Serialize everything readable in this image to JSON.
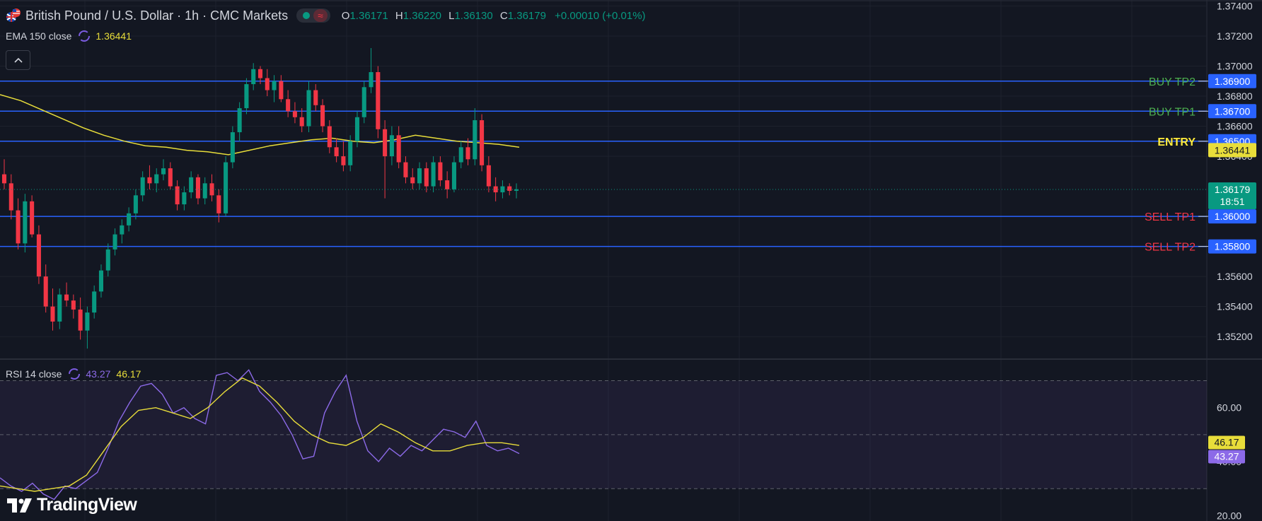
{
  "header": {
    "symbol_title": "British Pound / U.S. Dollar · 1h · CMC Markets",
    "ohlc": [
      {
        "key": "O",
        "value": "1.36171"
      },
      {
        "key": "H",
        "value": "1.36220"
      },
      {
        "key": "L",
        "value": "1.36130"
      },
      {
        "key": "C",
        "value": "1.36179"
      }
    ],
    "change": "+0.00010 (+0.01%)",
    "market_status_icon": "market-open-dot",
    "data_icon": "wave-icon"
  },
  "ema_indicator": {
    "label": "EMA 150 close",
    "value": "1.36441"
  },
  "rsi_indicator": {
    "label": "RSI 14 close",
    "value_rsi": "43.27",
    "value_ma": "46.17"
  },
  "brand": {
    "name": "TradingView",
    "logo_icon": "tradingview-logo-icon"
  },
  "colors": {
    "background": "#131722",
    "up": "#089981",
    "down": "#f23645",
    "level_line": "#2962ff",
    "ema": "#e8dd3a",
    "rsi": "#8c6ae8",
    "rsi_ma": "#e8dd3a",
    "buy_label": "#4caf50",
    "sell_label": "#f23645",
    "entry_label": "#ffeb3b"
  },
  "chart_data": [
    {
      "type": "candlestick",
      "title": "British Pound / U.S. Dollar · 1h · CMC Markets",
      "ylim": [
        1.3505,
        1.3744
      ],
      "y_ticks": [
        "1.37400",
        "1.37200",
        "1.37000",
        "1.36800",
        "1.36600",
        "1.36400",
        "1.35600",
        "1.35400",
        "1.35200"
      ],
      "current_price": {
        "value": 1.36179,
        "label": "1.36179",
        "countdown": "18:51"
      },
      "ema": {
        "name": "EMA 150 close",
        "value": 1.36441,
        "label": "1.36441",
        "values": [
          1.3681,
          1.3677,
          1.3671,
          1.3665,
          1.3659,
          1.3654,
          1.365,
          1.3647,
          1.3646,
          1.3644,
          1.3643,
          1.3641,
          1.3644,
          1.3647,
          1.3649,
          1.3651,
          1.3652,
          1.365,
          1.3649,
          1.3651,
          1.3654,
          1.3652,
          1.365,
          1.3649,
          1.3648,
          1.3646
        ]
      },
      "levels": [
        {
          "name": "BUY TP2",
          "value": 1.369,
          "label": "1.36900",
          "side": "buy"
        },
        {
          "name": "BUY TP1",
          "value": 1.367,
          "label": "1.36700",
          "side": "buy"
        },
        {
          "name": "ENTRY",
          "value": 1.365,
          "label": "1.36500",
          "side": "entry"
        },
        {
          "name": "SELL TP1",
          "value": 1.36,
          "label": "1.36000",
          "side": "sell"
        },
        {
          "name": "SELL TP2",
          "value": 1.358,
          "label": "1.35800",
          "side": "sell"
        }
      ],
      "candles": [
        [
          1.3628,
          1.3638,
          1.3618,
          1.3622
        ],
        [
          1.3622,
          1.3628,
          1.3598,
          1.3604
        ],
        [
          1.3604,
          1.3612,
          1.3578,
          1.3582
        ],
        [
          1.3582,
          1.3615,
          1.3576,
          1.361
        ],
        [
          1.361,
          1.3614,
          1.3586,
          1.3588
        ],
        [
          1.3588,
          1.3594,
          1.3555,
          1.356
        ],
        [
          1.356,
          1.3568,
          1.3536,
          1.354
        ],
        [
          1.354,
          1.3552,
          1.3524,
          1.353
        ],
        [
          1.353,
          1.3552,
          1.3525,
          1.3548
        ],
        [
          1.3548,
          1.3556,
          1.354,
          1.3544
        ],
        [
          1.3544,
          1.3548,
          1.3532,
          1.3538
        ],
        [
          1.3538,
          1.3546,
          1.3518,
          1.3524
        ],
        [
          1.3524,
          1.354,
          1.3512,
          1.3536
        ],
        [
          1.3536,
          1.3554,
          1.3532,
          1.355
        ],
        [
          1.355,
          1.3568,
          1.3546,
          1.3564
        ],
        [
          1.3564,
          1.3582,
          1.356,
          1.3578
        ],
        [
          1.3578,
          1.3592,
          1.3574,
          1.3588
        ],
        [
          1.3588,
          1.3598,
          1.3582,
          1.3594
        ],
        [
          1.3594,
          1.3606,
          1.359,
          1.3602
        ],
        [
          1.3602,
          1.3618,
          1.3598,
          1.3614
        ],
        [
          1.3614,
          1.363,
          1.361,
          1.3626
        ],
        [
          1.3626,
          1.3634,
          1.3618,
          1.3622
        ],
        [
          1.3622,
          1.3632,
          1.3616,
          1.3628
        ],
        [
          1.3628,
          1.3638,
          1.3624,
          1.3632
        ],
        [
          1.3632,
          1.3636,
          1.3618,
          1.362
        ],
        [
          1.362,
          1.3624,
          1.3604,
          1.3608
        ],
        [
          1.3608,
          1.362,
          1.3604,
          1.3616
        ],
        [
          1.3616,
          1.363,
          1.3612,
          1.3626
        ],
        [
          1.3626,
          1.3628,
          1.3608,
          1.3612
        ],
        [
          1.3612,
          1.3626,
          1.3608,
          1.3622
        ],
        [
          1.3622,
          1.3628,
          1.361,
          1.3614
        ],
        [
          1.3614,
          1.3618,
          1.3596,
          1.3602
        ],
        [
          1.3602,
          1.364,
          1.36,
          1.3636
        ],
        [
          1.3636,
          1.366,
          1.3632,
          1.3656
        ],
        [
          1.3656,
          1.3676,
          1.365,
          1.3672
        ],
        [
          1.3672,
          1.3692,
          1.3668,
          1.3688
        ],
        [
          1.3688,
          1.3702,
          1.3684,
          1.3698
        ],
        [
          1.3698,
          1.37,
          1.3688,
          1.3692
        ],
        [
          1.3692,
          1.3698,
          1.368,
          1.3684
        ],
        [
          1.3684,
          1.3694,
          1.3676,
          1.369
        ],
        [
          1.369,
          1.3694,
          1.3676,
          1.3678
        ],
        [
          1.3678,
          1.3684,
          1.3666,
          1.367
        ],
        [
          1.367,
          1.3676,
          1.3662,
          1.3666
        ],
        [
          1.3666,
          1.3672,
          1.3656,
          1.366
        ],
        [
          1.366,
          1.369,
          1.3656,
          1.3684
        ],
        [
          1.3684,
          1.3688,
          1.367,
          1.3674
        ],
        [
          1.3674,
          1.3678,
          1.3656,
          1.366
        ],
        [
          1.366,
          1.3664,
          1.3642,
          1.3646
        ],
        [
          1.3646,
          1.3652,
          1.3636,
          1.364
        ],
        [
          1.364,
          1.365,
          1.363,
          1.3634
        ],
        [
          1.3634,
          1.3654,
          1.363,
          1.365
        ],
        [
          1.365,
          1.367,
          1.3646,
          1.3666
        ],
        [
          1.3666,
          1.369,
          1.3662,
          1.3686
        ],
        [
          1.3686,
          1.3712,
          1.3682,
          1.3696
        ],
        [
          1.3696,
          1.37,
          1.3652,
          1.3658
        ],
        [
          1.3658,
          1.3664,
          1.3612,
          1.364
        ],
        [
          1.364,
          1.366,
          1.3634,
          1.3654
        ],
        [
          1.3654,
          1.366,
          1.3632,
          1.3636
        ],
        [
          1.3636,
          1.364,
          1.3622,
          1.3626
        ],
        [
          1.3626,
          1.3632,
          1.3618,
          1.3622
        ],
        [
          1.3622,
          1.3636,
          1.3618,
          1.3632
        ],
        [
          1.3632,
          1.3636,
          1.3616,
          1.362
        ],
        [
          1.362,
          1.364,
          1.3616,
          1.3636
        ],
        [
          1.3636,
          1.364,
          1.362,
          1.3624
        ],
        [
          1.3624,
          1.363,
          1.3612,
          1.3618
        ],
        [
          1.3618,
          1.364,
          1.3616,
          1.3636
        ],
        [
          1.3636,
          1.365,
          1.3632,
          1.3646
        ],
        [
          1.3646,
          1.3652,
          1.3634,
          1.3638
        ],
        [
          1.3638,
          1.3672,
          1.3634,
          1.3664
        ],
        [
          1.3664,
          1.3668,
          1.363,
          1.3634
        ],
        [
          1.3634,
          1.364,
          1.3616,
          1.362
        ],
        [
          1.362,
          1.3626,
          1.361,
          1.3616
        ],
        [
          1.3616,
          1.3624,
          1.3612,
          1.362
        ],
        [
          1.362,
          1.3622,
          1.3614,
          1.3617
        ],
        [
          1.3617,
          1.3622,
          1.3612,
          1.3618
        ]
      ]
    },
    {
      "type": "line",
      "title": "RSI 14 close",
      "ylim": [
        18,
        78
      ],
      "y_ticks": [
        "60.00",
        "40.00",
        "20.00"
      ],
      "bands": [
        70,
        50,
        30
      ],
      "series": [
        {
          "name": "RSI",
          "last": 43.27,
          "label": "43.27",
          "values": [
            34,
            31,
            29,
            32,
            28,
            26,
            31,
            30,
            33,
            36,
            45,
            55,
            62,
            68,
            69,
            65,
            58,
            60,
            56,
            54,
            72,
            73,
            70,
            74,
            66,
            62,
            57,
            50,
            41,
            42,
            58,
            66,
            72,
            55,
            44,
            40,
            45,
            42,
            46,
            44,
            48,
            52,
            51,
            49,
            55,
            46,
            44,
            45,
            43
          ]
        },
        {
          "name": "RSI MA",
          "last": 46.17,
          "label": "46.17",
          "values": [
            31,
            30,
            29,
            30,
            31,
            35,
            44,
            53,
            59,
            60,
            58,
            56,
            60,
            66,
            71,
            68,
            62,
            55,
            50,
            47,
            46,
            49,
            54,
            51,
            47,
            44,
            44,
            46,
            47,
            47,
            46
          ]
        }
      ]
    }
  ]
}
